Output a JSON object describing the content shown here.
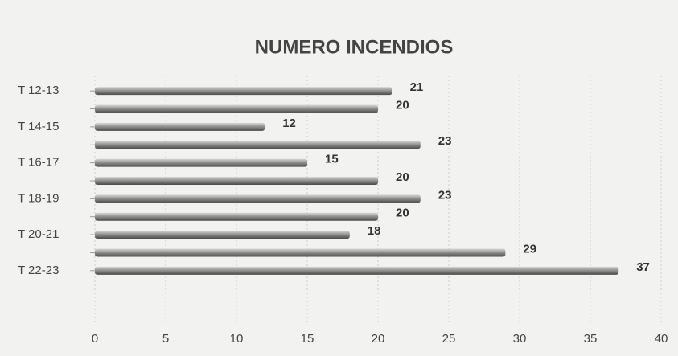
{
  "chart_data": {
    "type": "hbar",
    "title": "NUMERO INCENDIOS",
    "categories": [
      "T 12-13",
      null,
      "T 14-15",
      null,
      "T 16-17",
      null,
      "T 18-19",
      null,
      "T 20-21",
      null,
      "T 22-23"
    ],
    "values": [
      21,
      20,
      12,
      23,
      15,
      20,
      23,
      20,
      18,
      29,
      37
    ],
    "color": "#8c8c8c",
    "xlim": [
      0,
      40
    ],
    "xticks": [
      0,
      5,
      10,
      15,
      20,
      25,
      30,
      35,
      40
    ],
    "grid": true
  }
}
